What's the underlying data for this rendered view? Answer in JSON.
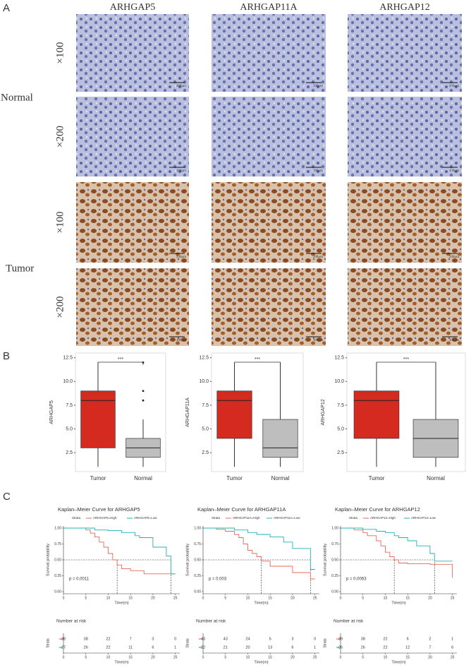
{
  "histology": {
    "panel_label": "A",
    "columns": [
      "ARHGAP5",
      "ARHGAP11A",
      "ARHGAP12"
    ],
    "groups": [
      {
        "label": "Normal",
        "rows": [
          {
            "magnification": "×100",
            "scale_bars": [
              "200μm",
              "200μm",
              "200μm"
            ]
          },
          {
            "magnification": "×200",
            "scale_bars": [
              "100μm",
              "100μm",
              "100μm"
            ]
          }
        ]
      },
      {
        "label": "Tumor",
        "rows": [
          {
            "magnification": "×100",
            "scale_bars": [
              "200μm",
              "200μm",
              "200μm"
            ]
          },
          {
            "magnification": "×200",
            "scale_bars": [
              "100μm",
              "100μm",
              "100μm"
            ]
          }
        ]
      }
    ]
  },
  "panel_b_label": "B",
  "panel_c_label": "C",
  "chart_data": [
    {
      "type": "box",
      "ylabel": "ARHGAP5",
      "categories": [
        "Tumor",
        "Normal"
      ],
      "colors": [
        "#d42a20",
        "#bebebe"
      ],
      "boxes": [
        {
          "whislo": 1,
          "q1": 3,
          "median": 8,
          "q3": 9,
          "whishi": 12,
          "fliers": []
        },
        {
          "whislo": 1,
          "q1": 2,
          "median": 3,
          "q3": 4,
          "whishi": 6,
          "fliers": [
            8,
            9,
            12
          ]
        }
      ],
      "annotation": "***",
      "ylim": [
        0.5,
        13
      ],
      "yticks": [
        2.5,
        {
          "value": 5,
          "label": "5.0"
        },
        7.5,
        {
          "value": 10,
          "label": "10.0"
        },
        12.5
      ]
    },
    {
      "type": "box",
      "ylabel": "ARHGAP11A",
      "categories": [
        "Tumor",
        "Normal"
      ],
      "colors": [
        "#d42a20",
        "#bebebe"
      ],
      "boxes": [
        {
          "whislo": 1,
          "q1": 4,
          "median": 8,
          "q3": 9,
          "whishi": 12,
          "fliers": []
        },
        {
          "whislo": 1,
          "q1": 2,
          "median": 3,
          "q3": 6,
          "whishi": 12,
          "fliers": []
        }
      ],
      "annotation": "***",
      "ylim": [
        0.5,
        13
      ],
      "yticks": [
        2.5,
        {
          "value": 5,
          "label": "5.0"
        },
        7.5,
        {
          "value": 10,
          "label": "10.0"
        },
        12.5
      ]
    },
    {
      "type": "box",
      "ylabel": "ARHGAP12",
      "categories": [
        "Tumor",
        "Normal"
      ],
      "colors": [
        "#d42a20",
        "#bebebe"
      ],
      "boxes": [
        {
          "whislo": 1,
          "q1": 4,
          "median": 8,
          "q3": 9,
          "whishi": 12,
          "fliers": []
        },
        {
          "whislo": 1,
          "q1": 2,
          "median": 4,
          "q3": 6,
          "whishi": 12,
          "fliers": []
        }
      ],
      "annotation": "***",
      "ylim": [
        0.5,
        13
      ],
      "yticks": [
        2.5,
        {
          "value": 5,
          "label": "5.0"
        },
        7.5,
        {
          "value": 10,
          "label": "10.0"
        },
        12.5
      ]
    },
    {
      "type": "line",
      "title": "Kaplan–Meier Curve for ARHGAP5",
      "legend_title": "Strata",
      "series": [
        {
          "name": "ARHGAP5=High",
          "color": "#e8685a",
          "x": [
            0,
            5,
            6,
            7,
            8,
            9,
            10,
            11,
            12,
            13,
            15,
            18,
            25
          ],
          "values": [
            1,
            0.97,
            0.92,
            0.86,
            0.78,
            0.7,
            0.6,
            0.5,
            0.42,
            0.36,
            0.33,
            0.28,
            0.28
          ]
        },
        {
          "name": "ARHGAP5=Low",
          "color": "#1fb3b6",
          "x": [
            0,
            7,
            10,
            13,
            16,
            17,
            20,
            23,
            24,
            25
          ],
          "values": [
            1,
            0.97,
            0.96,
            0.93,
            0.88,
            0.85,
            0.7,
            0.56,
            0.28,
            0.28
          ]
        }
      ],
      "xlim": [
        0,
        26
      ],
      "xticks": [
        0,
        5,
        10,
        15,
        20,
        25
      ],
      "ylim": [
        0,
        1
      ],
      "yticks": [
        {
          "value": 0,
          "label": "0.00"
        },
        {
          "value": 0.25,
          "label": "0.25"
        },
        {
          "value": 0.5,
          "label": "0.50"
        },
        {
          "value": 0.75,
          "label": "0.75"
        },
        {
          "value": 1,
          "label": "1.00"
        }
      ],
      "xlabel": "Time(m)",
      "ylabel": "Survival probability",
      "p_text": "p = 0.0011",
      "median_y": 0.5,
      "median_x": [
        12,
        24
      ],
      "risk_table": {
        "title": "Number at risk",
        "ylabel": "Strata",
        "values": [
          [
            38,
            38,
            22,
            7,
            3,
            0
          ],
          [
            27,
            26,
            22,
            11,
            6,
            1
          ]
        ]
      }
    },
    {
      "type": "line",
      "title": "Kaplan–Meier Curve for ARHGAP11A",
      "legend_title": "Strata",
      "series": [
        {
          "name": "ARHGAP11A=High",
          "color": "#e8685a",
          "x": [
            0,
            3,
            5,
            7,
            8,
            9,
            10,
            11,
            12,
            13,
            15,
            20,
            24,
            25
          ],
          "values": [
            1,
            0.98,
            0.95,
            0.9,
            0.85,
            0.75,
            0.65,
            0.6,
            0.55,
            0.48,
            0.4,
            0.3,
            0.2,
            0.2
          ]
        },
        {
          "name": "ARHGAP11A=Low",
          "color": "#1fb3b6",
          "x": [
            0,
            7,
            10,
            12,
            15,
            18,
            20,
            24,
            25
          ],
          "values": [
            1,
            0.97,
            0.93,
            0.9,
            0.86,
            0.78,
            0.68,
            0.35,
            0.35
          ]
        }
      ],
      "xlim": [
        0,
        26
      ],
      "xticks": [
        0,
        5,
        10,
        15,
        20,
        25
      ],
      "ylim": [
        0,
        1
      ],
      "yticks": [
        {
          "value": 0,
          "label": "0.00"
        },
        {
          "value": 0.25,
          "label": "0.25"
        },
        {
          "value": 0.5,
          "label": "0.50"
        },
        {
          "value": 0.75,
          "label": "0.75"
        },
        {
          "value": 1,
          "label": "1.00"
        }
      ],
      "xlabel": "Time(m)",
      "ylabel": "Survival probability",
      "p_text": "p = 0.003",
      "median_y": 0.5,
      "median_x": [
        13,
        24
      ],
      "risk_table": {
        "title": "Number at risk",
        "ylabel": "Strata",
        "values": [
          [
            43,
            43,
            24,
            5,
            3,
            0
          ],
          [
            22,
            21,
            20,
            13,
            6,
            1
          ]
        ]
      }
    },
    {
      "type": "line",
      "title": "Kaplan–Meier Curve for ARHGAP12",
      "legend_title": "Strata",
      "series": [
        {
          "name": "ARHGAP12=High",
          "color": "#e8685a",
          "x": [
            0,
            3,
            5,
            6,
            8,
            9,
            10,
            11,
            12,
            13,
            15,
            20,
            25
          ],
          "values": [
            1,
            0.97,
            0.93,
            0.88,
            0.8,
            0.72,
            0.62,
            0.55,
            0.5,
            0.45,
            0.44,
            0.43,
            0.22
          ]
        },
        {
          "name": "ARHGAP12=Low",
          "color": "#1fb3b6",
          "x": [
            0,
            5,
            8,
            10,
            12,
            13,
            15,
            17,
            20,
            21,
            25
          ],
          "values": [
            1,
            0.98,
            0.95,
            0.93,
            0.88,
            0.85,
            0.8,
            0.72,
            0.6,
            0.48,
            0.48
          ]
        }
      ],
      "xlim": [
        0,
        26
      ],
      "xticks": [
        0,
        5,
        10,
        15,
        20,
        25
      ],
      "ylim": [
        0,
        1
      ],
      "yticks": [
        {
          "value": 0,
          "label": "0.00"
        },
        {
          "value": 0.25,
          "label": "0.25"
        },
        {
          "value": 0.5,
          "label": "0.50"
        },
        {
          "value": 0.75,
          "label": "0.75"
        },
        {
          "value": 1,
          "label": "1.00"
        }
      ],
      "xlabel": "Time(m)",
      "ylabel": "Survival probability",
      "p_text": "p = 0.0063",
      "median_y": 0.5,
      "median_x": [
        12,
        21
      ],
      "risk_table": {
        "title": "Number at risk",
        "ylabel": "Strata",
        "values": [
          [
            39,
            38,
            22,
            6,
            2,
            1
          ],
          [
            26,
            26,
            22,
            12,
            7,
            6
          ]
        ]
      }
    }
  ]
}
